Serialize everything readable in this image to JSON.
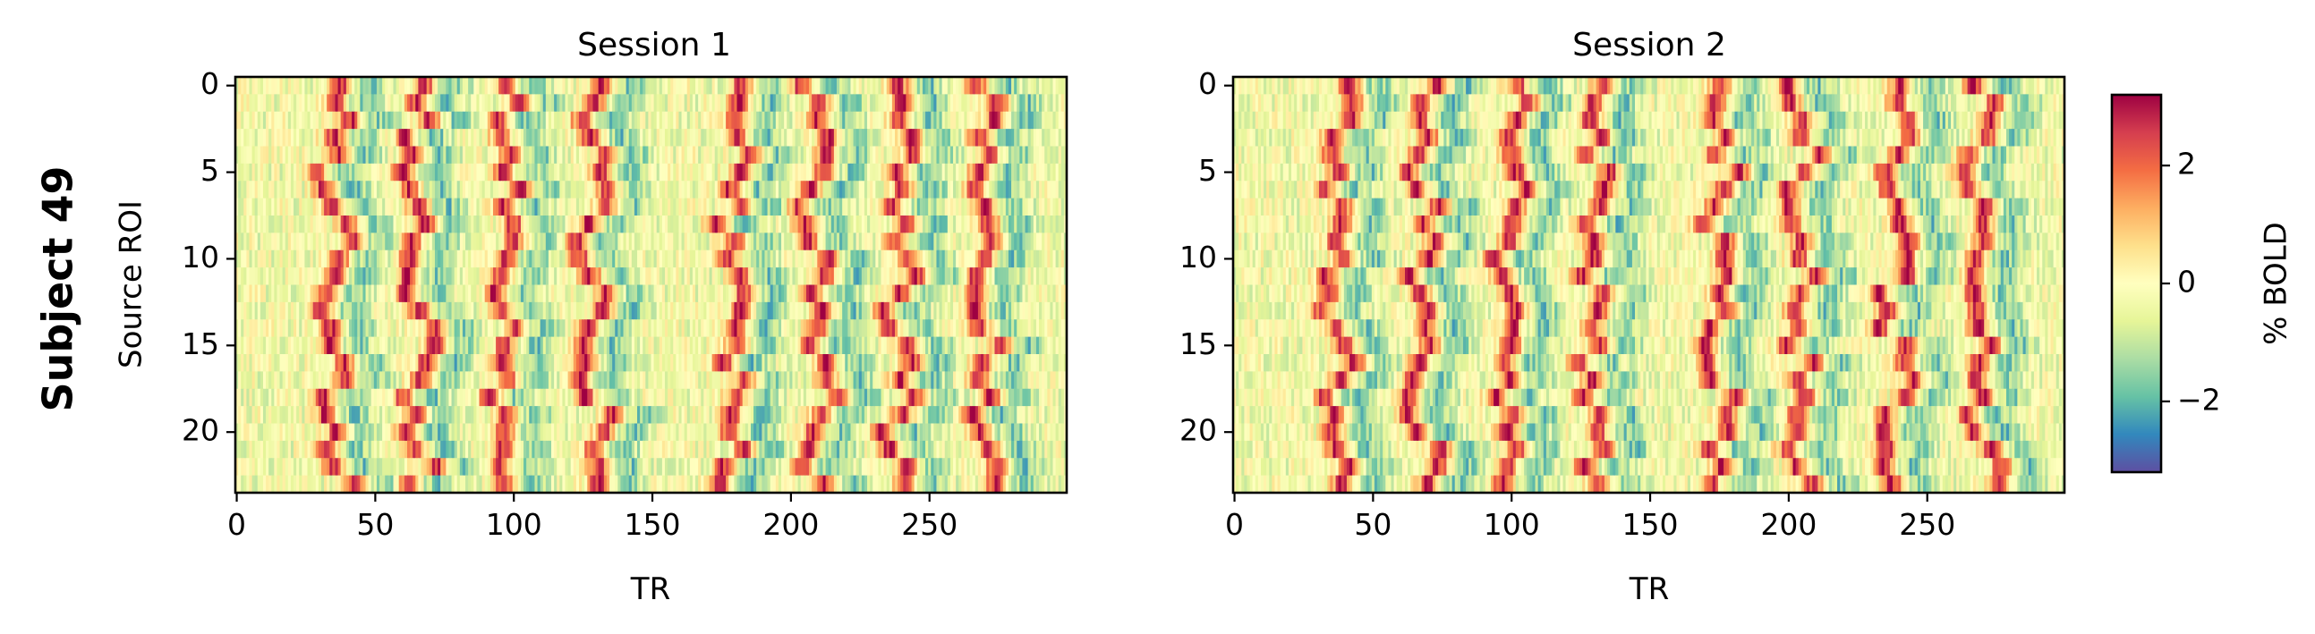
{
  "figure": {
    "row_label": "Subject 49"
  },
  "chart_data": [
    {
      "type": "heatmap",
      "title": "Session 1",
      "xlabel": "TR",
      "ylabel": "Source ROI",
      "n_timepoints": 300,
      "n_rois": 24,
      "xlim": [
        0,
        299
      ],
      "ylim": [
        23,
        0
      ],
      "xticks": [
        "0",
        "50",
        "100",
        "150",
        "200",
        "250"
      ],
      "yticks": [
        "0",
        "5",
        "10",
        "15",
        "20"
      ],
      "event_centers_tr": [
        35,
        65,
        97,
        130,
        180,
        210,
        240,
        270
      ],
      "colormap": "Spectral_r",
      "value_range": [
        -3.2,
        3.2
      ]
    },
    {
      "type": "heatmap",
      "title": "Session 2",
      "xlabel": "TR",
      "ylabel": "",
      "n_timepoints": 300,
      "n_rois": 24,
      "xlim": [
        0,
        299
      ],
      "ylim": [
        23,
        0
      ],
      "xticks": [
        "0",
        "50",
        "100",
        "150",
        "200",
        "250"
      ],
      "yticks": [
        "0",
        "5",
        "10",
        "15",
        "20"
      ],
      "event_centers_tr": [
        38,
        68,
        100,
        130,
        175,
        205,
        238,
        270
      ],
      "colormap": "Spectral_r",
      "value_range": [
        -3.2,
        3.2
      ]
    }
  ],
  "colorbar": {
    "label": "% BOLD",
    "ticks": [
      "2",
      "0",
      "−2"
    ],
    "tick_values": [
      2,
      0,
      -2
    ],
    "range": [
      -3.2,
      3.2
    ],
    "colors": [
      "#5e4fa2",
      "#3288bd",
      "#66c2a5",
      "#abdda4",
      "#e6f598",
      "#ffffbf",
      "#fee08b",
      "#fdae61",
      "#f46d43",
      "#d53e4f",
      "#9e0142"
    ]
  }
}
